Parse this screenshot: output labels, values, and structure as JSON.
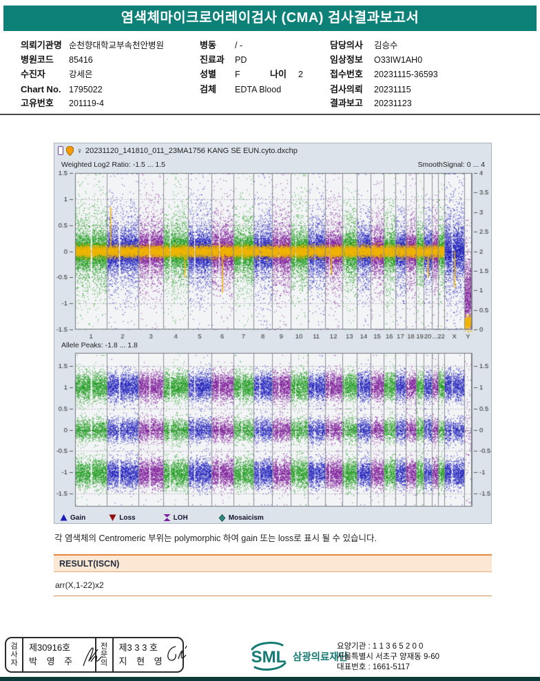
{
  "header": {
    "title": "염색체마이크로어레이검사 (CMA) 검사결과보고서"
  },
  "colors": {
    "accent_teal": "#0d8077",
    "bottom_bar": "#0c3b38",
    "result_bg": "#fbe7d4",
    "result_border": "#e2873c"
  },
  "info": {
    "col1": [
      {
        "label": "의뢰기관명",
        "value": "순천향대학교부속천안병원"
      },
      {
        "label": "병원코드",
        "value": "85416"
      },
      {
        "label": "수진자",
        "value": "강세은"
      },
      {
        "label": "Chart No.",
        "value": "1795022"
      },
      {
        "label": "고유번호",
        "value": "201119-4"
      }
    ],
    "col2": [
      {
        "label": "병동",
        "value": "/ -"
      },
      {
        "label": "진료과",
        "value": "PD"
      },
      {
        "label": "성별",
        "value": "F"
      },
      {
        "label": "검체",
        "value": "EDTA Blood"
      }
    ],
    "age": {
      "label": "나이",
      "value": "2"
    },
    "col3": [
      {
        "label": "담당의사",
        "value": "김승수"
      },
      {
        "label": "임상정보",
        "value": "O33IW1AH0"
      },
      {
        "label": "접수번호",
        "value": "20231115-36593"
      },
      {
        "label": "검사의뢰",
        "value": "20231115"
      },
      {
        "label": "결과보고",
        "value": "20231123"
      }
    ]
  },
  "chart": {
    "female_symbol": "♀",
    "filename": "20231120_141810_011_23MA1756 KANG SE EUN.cyto.dxchp",
    "left_axis_title": "Weighted Log2 Ratio: -1.5 ... 1.5",
    "right_axis_title": "SmoothSignal: 0 ... 4",
    "allele_title": "Allele Peaks: -1.8 ... 1.8",
    "legend": [
      {
        "label": "Gain",
        "shape": "triangle-up",
        "color": "#1c1cb8"
      },
      {
        "label": "Loss",
        "shape": "triangle-down",
        "color": "#8f1010"
      },
      {
        "label": "LOH",
        "shape": "hourglass",
        "color": "#7c1d9c"
      },
      {
        "label": "Mosaicism",
        "shape": "diamond",
        "color": "#2e8b80"
      }
    ]
  },
  "chart_data": [
    {
      "type": "scatter",
      "title": "Weighted Log2 Ratio: -1.5 ... 1.5",
      "right_axis_title": "SmoothSignal: 0 ... 4",
      "x_categories": [
        "1",
        "2",
        "3",
        "4",
        "5",
        "6",
        "7",
        "8",
        "9",
        "10",
        "11",
        "12",
        "13",
        "14",
        "15",
        "16",
        "17",
        "18",
        "19",
        "20",
        "21",
        "22",
        "X",
        "Y"
      ],
      "x_tick_labels": [
        "1",
        "2",
        "3",
        "4",
        "5",
        "6",
        "7",
        "8",
        "9",
        "10",
        "11",
        "12",
        "13",
        "14",
        "15",
        "16",
        "17",
        "18",
        "19",
        "20",
        "...",
        "22",
        "X",
        "Y"
      ],
      "chrom_rel_widths": [
        249,
        243,
        198,
        191,
        181,
        171,
        159,
        146,
        141,
        134,
        135,
        134,
        115,
        107,
        102,
        90,
        83,
        80,
        59,
        64,
        47,
        51,
        155,
        59
      ],
      "centromere_frac": [
        0.5,
        0.39,
        0.45,
        0.26,
        0.27,
        0.35,
        0.41,
        0.31,
        0.35,
        0.3,
        0.4,
        0.26,
        0.17,
        0.17,
        0.19,
        0.41,
        0.33,
        0.22,
        0.45,
        0.44,
        0.28,
        0.33,
        0.38,
        null
      ],
      "ylim": [
        -1.5,
        1.5
      ],
      "right_ylim": [
        0,
        4
      ],
      "left_ticks": [
        "1.5",
        "1",
        "0.5",
        "0",
        "-0.5",
        "-1",
        "-1.5"
      ],
      "right_ticks": [
        "4",
        "3.5",
        "3",
        "2.5",
        "2",
        "1.5",
        "1",
        "0.5",
        "0"
      ],
      "grid_dotted": [
        1,
        0.5,
        -0.5,
        -1
      ],
      "grid_solid": [
        0
      ],
      "point_colors": [
        "#1d9b1d",
        "#2020bc",
        "#7d1a99"
      ],
      "smooth_signal_color": "#f2b500",
      "smooth_sd": 0.055,
      "smooth_density": 46,
      "density": 90,
      "bands": [
        {
          "frac": 0.62,
          "sd": 0.16
        },
        {
          "frac": 0.28,
          "sd": 0.38
        },
        {
          "frac": 0.1,
          "sd": 0.75
        }
      ],
      "spikes": [
        {
          "chrom": "2",
          "fx": 0.1,
          "to": 0.85
        },
        {
          "chrom": "4",
          "fx": 0.85,
          "to": -0.5
        },
        {
          "chrom": "6",
          "fx": 0.5,
          "to": -0.8
        },
        {
          "chrom": "12",
          "fx": 0.35,
          "to": -0.45
        },
        {
          "chrom": "20",
          "fx": 0.5,
          "to": -0.5
        },
        {
          "chrom": "X",
          "fx": 0.5,
          "to": -0.7
        }
      ],
      "special": {
        "X": {
          "bands": [
            {
              "frac": 0.55,
              "sd": 0.2
            },
            {
              "frac": 0.3,
              "sd": 0.45
            },
            {
              "frac": 0.15,
              "sd": 0.8
            }
          ]
        },
        "Y": {
          "color": "#7d1a99",
          "bands": [
            {
              "frac": 0.8,
              "sd": 0.3,
              "center": -0.85,
              "lo": -1.49,
              "hi": -0.15
            },
            {
              "frac": 0.2,
              "sd": 0.5,
              "center": -0.5,
              "lo": -1.49,
              "hi": 0.6
            }
          ],
          "yellow_cluster": {
            "center": -1.36,
            "sd": 0.06,
            "n": 260
          }
        }
      }
    },
    {
      "type": "scatter",
      "title": "Allele Peaks: -1.8 ... 1.8",
      "x_categories": [
        "1",
        "2",
        "3",
        "4",
        "5",
        "6",
        "7",
        "8",
        "9",
        "10",
        "11",
        "12",
        "13",
        "14",
        "15",
        "16",
        "17",
        "18",
        "19",
        "20",
        "21",
        "22",
        "X",
        "Y"
      ],
      "chrom_rel_widths": [
        249,
        243,
        198,
        191,
        181,
        171,
        159,
        146,
        141,
        134,
        135,
        134,
        115,
        107,
        102,
        90,
        83,
        80,
        59,
        64,
        47,
        51,
        155,
        59
      ],
      "centromere_frac": [
        0.5,
        0.39,
        0.45,
        0.26,
        0.27,
        0.35,
        0.41,
        0.31,
        0.35,
        0.3,
        0.4,
        0.26,
        0.17,
        0.17,
        0.19,
        0.41,
        0.33,
        0.22,
        0.45,
        0.44,
        0.28,
        0.33,
        0.38,
        null
      ],
      "ylim": [
        -1.8,
        1.8
      ],
      "left_ticks": [
        "1.5",
        "1",
        "0.5",
        "0",
        "-0.5",
        "-1",
        "-1.5"
      ],
      "right_ticks": [
        "1.5",
        "1",
        "0.5",
        "0",
        "-0.5",
        "-1",
        "-1.5"
      ],
      "grid_dotted": [
        1.5,
        0.5,
        -0.5,
        -1.5
      ],
      "grid_solid": [
        0
      ],
      "point_colors": [
        "#1d9b1d",
        "#2020bc",
        "#7d1a99"
      ],
      "density": 95,
      "bands": [
        {
          "frac": 0.37,
          "sd": 0.17,
          "center": 1.02,
          "lo": 0.5,
          "hi": 1.75
        },
        {
          "frac": 0.24,
          "sd": 0.14,
          "center": 0,
          "lo": -0.45,
          "hi": 0.45
        },
        {
          "frac": 0.37,
          "sd": 0.17,
          "center": -1.02,
          "lo": -1.75,
          "hi": -0.5
        },
        {
          "frac": 0.02,
          "sd": 0.9,
          "center": 0,
          "lo": -1.75,
          "hi": 1.75
        }
      ],
      "special": {
        "Y": {
          "color": "#7d1a99",
          "density": 10,
          "bands": [
            {
              "frac": 1,
              "sd": 0.85,
              "center": 0,
              "lo": -1.7,
              "hi": 1.7
            }
          ]
        }
      }
    }
  ],
  "note": "각 염색체의 Centromeric 부위는 polymorphic 하여 gain 또는 loss로 표시 될 수 있습니다.",
  "result": {
    "header": "RESULT(ISCN)",
    "value": "arr(X,1-22)x2"
  },
  "footer": {
    "examiner": {
      "role": "검사자",
      "cert": "제30916호",
      "name": "박 영 주"
    },
    "specialist": {
      "role": "전문의",
      "cert": "제3 3 3 호",
      "name": "지 현 영"
    },
    "logo": {
      "text": "SML",
      "org": "삼광의료재단"
    },
    "address": {
      "line1": "요양기관 : 1 1 3 6 5 2 0 0",
      "line2": "서울특별시 서초구 양재동 9-60",
      "line3": "대표번호 : 1661-5117"
    }
  }
}
